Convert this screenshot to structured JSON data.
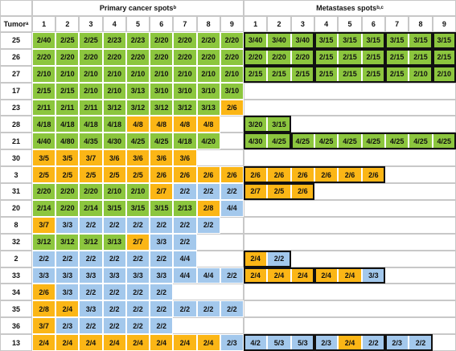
{
  "header": {
    "tumor": "Tumor",
    "tumor_note": "a",
    "primary": "Primary cancer spots",
    "primary_note": "b",
    "metastases": "Metastases spots",
    "metastases_note": "b,c",
    "spots": [
      1,
      2,
      3,
      4,
      5,
      6,
      7,
      8,
      9
    ]
  },
  "colors": {
    "g": "#8cc63e",
    "o": "#fbb616",
    "b": "#a3c8ec"
  },
  "rows": [
    {
      "tumor": 25,
      "primary": [
        [
          "2/40",
          "g"
        ],
        [
          "2/25",
          "g"
        ],
        [
          "2/25",
          "g"
        ],
        [
          "2/23",
          "g"
        ],
        [
          "2/23",
          "g"
        ],
        [
          "2/20",
          "g"
        ],
        [
          "2/20",
          "g"
        ],
        [
          "2/20",
          "g"
        ],
        [
          "2/20",
          "g"
        ]
      ],
      "metastases": [
        [
          "3/40",
          "g"
        ],
        [
          "3/40",
          "g"
        ],
        [
          "3/40",
          "g"
        ],
        [
          "3/15",
          "g"
        ],
        [
          "3/15",
          "g"
        ],
        [
          "3/15",
          "g"
        ],
        [
          "3/15",
          "g"
        ],
        [
          "3/15",
          "g"
        ],
        [
          "3/15",
          "g"
        ]
      ]
    },
    {
      "tumor": 26,
      "primary": [
        [
          "2/20",
          "g"
        ],
        [
          "2/20",
          "g"
        ],
        [
          "2/20",
          "g"
        ],
        [
          "2/20",
          "g"
        ],
        [
          "2/20",
          "g"
        ],
        [
          "2/20",
          "g"
        ],
        [
          "2/20",
          "g"
        ],
        [
          "2/20",
          "g"
        ],
        [
          "2/20",
          "g"
        ]
      ],
      "metastases": [
        [
          "2/20",
          "g"
        ],
        [
          "2/20",
          "g"
        ],
        [
          "2/20",
          "g"
        ],
        [
          "2/15",
          "g"
        ],
        [
          "2/15",
          "g"
        ],
        [
          "2/15",
          "g"
        ],
        [
          "2/15",
          "g"
        ],
        [
          "2/15",
          "g"
        ],
        [
          "2/15",
          "g"
        ]
      ]
    },
    {
      "tumor": 27,
      "primary": [
        [
          "2/10",
          "g"
        ],
        [
          "2/10",
          "g"
        ],
        [
          "2/10",
          "g"
        ],
        [
          "2/10",
          "g"
        ],
        [
          "2/10",
          "g"
        ],
        [
          "2/10",
          "g"
        ],
        [
          "2/10",
          "g"
        ],
        [
          "2/10",
          "g"
        ],
        [
          "2/10",
          "g"
        ]
      ],
      "metastases": [
        [
          "2/15",
          "g"
        ],
        [
          "2/15",
          "g"
        ],
        [
          "2/15",
          "g"
        ],
        [
          "2/15",
          "g"
        ],
        [
          "2/15",
          "g"
        ],
        [
          "2/15",
          "g"
        ],
        [
          "2/15",
          "g"
        ],
        [
          "2/10",
          "g"
        ],
        [
          "2/10",
          "g"
        ]
      ]
    },
    {
      "tumor": 17,
      "primary": [
        [
          "2/15",
          "g"
        ],
        [
          "2/15",
          "g"
        ],
        [
          "2/10",
          "g"
        ],
        [
          "2/10",
          "g"
        ],
        [
          "3/13",
          "g"
        ],
        [
          "3/10",
          "g"
        ],
        [
          "3/10",
          "g"
        ],
        [
          "3/10",
          "g"
        ],
        [
          "3/10",
          "g"
        ]
      ],
      "metastases": []
    },
    {
      "tumor": 23,
      "primary": [
        [
          "2/11",
          "g"
        ],
        [
          "2/11",
          "g"
        ],
        [
          "2/11",
          "g"
        ],
        [
          "3/12",
          "g"
        ],
        [
          "3/12",
          "g"
        ],
        [
          "3/12",
          "g"
        ],
        [
          "3/12",
          "g"
        ],
        [
          "3/13",
          "g"
        ],
        [
          "2/6",
          "o"
        ]
      ],
      "metastases": []
    },
    {
      "tumor": 28,
      "primary": [
        [
          "4/18",
          "g"
        ],
        [
          "4/18",
          "g"
        ],
        [
          "4/18",
          "g"
        ],
        [
          "4/18",
          "g"
        ],
        [
          "4/8",
          "o"
        ],
        [
          "4/8",
          "o"
        ],
        [
          "4/8",
          "o"
        ],
        [
          "4/8",
          "o"
        ]
      ],
      "metastases": [
        [
          "3/20",
          "g"
        ],
        [
          "3/15",
          "g"
        ]
      ]
    },
    {
      "tumor": 21,
      "primary": [
        [
          "4/40",
          "g"
        ],
        [
          "4/80",
          "g"
        ],
        [
          "4/35",
          "g"
        ],
        [
          "4/30",
          "g"
        ],
        [
          "4/25",
          "g"
        ],
        [
          "4/25",
          "g"
        ],
        [
          "4/18",
          "g"
        ],
        [
          "4/20",
          "g"
        ]
      ],
      "metastases": [
        [
          "4/30",
          "g"
        ],
        [
          "4/25",
          "g"
        ],
        [
          "4/25",
          "g"
        ],
        [
          "4/25",
          "g"
        ],
        [
          "4/25",
          "g"
        ],
        [
          "4/25",
          "g"
        ],
        [
          "4/25",
          "g"
        ],
        [
          "4/25",
          "g"
        ],
        [
          "4/25",
          "g"
        ]
      ]
    },
    {
      "tumor": 30,
      "primary": [
        [
          "3/5",
          "o"
        ],
        [
          "3/5",
          "o"
        ],
        [
          "3/7",
          "o"
        ],
        [
          "3/6",
          "o"
        ],
        [
          "3/6",
          "o"
        ],
        [
          "3/6",
          "o"
        ],
        [
          "3/6",
          "o"
        ]
      ],
      "metastases": []
    },
    {
      "tumor": 3,
      "primary": [
        [
          "2/5",
          "o"
        ],
        [
          "2/5",
          "o"
        ],
        [
          "2/5",
          "o"
        ],
        [
          "2/5",
          "o"
        ],
        [
          "2/5",
          "o"
        ],
        [
          "2/6",
          "o"
        ],
        [
          "2/6",
          "o"
        ],
        [
          "2/6",
          "o"
        ],
        [
          "2/6",
          "o"
        ]
      ],
      "metastases": [
        [
          "2/6",
          "o"
        ],
        [
          "2/6",
          "o"
        ],
        [
          "2/6",
          "o"
        ],
        [
          "2/6",
          "o"
        ],
        [
          "2/6",
          "o"
        ],
        [
          "2/6",
          "o"
        ]
      ]
    },
    {
      "tumor": 31,
      "primary": [
        [
          "2/20",
          "g"
        ],
        [
          "2/20",
          "g"
        ],
        [
          "2/20",
          "g"
        ],
        [
          "2/10",
          "g"
        ],
        [
          "2/10",
          "g"
        ],
        [
          "2/7",
          "o"
        ],
        [
          "2/2",
          "b"
        ],
        [
          "2/2",
          "b"
        ],
        [
          "2/2",
          "b"
        ]
      ],
      "metastases": [
        [
          "2/7",
          "o"
        ],
        [
          "2/5",
          "o"
        ],
        [
          "2/6",
          "o"
        ]
      ]
    },
    {
      "tumor": 20,
      "primary": [
        [
          "2/14",
          "g"
        ],
        [
          "2/20",
          "g"
        ],
        [
          "2/14",
          "g"
        ],
        [
          "3/15",
          "g"
        ],
        [
          "3/15",
          "g"
        ],
        [
          "3/15",
          "g"
        ],
        [
          "2/13",
          "g"
        ],
        [
          "2/8",
          "o"
        ],
        [
          "4/4",
          "b"
        ]
      ],
      "metastases": []
    },
    {
      "tumor": 8,
      "primary": [
        [
          "3/7",
          "o"
        ],
        [
          "3/3",
          "b"
        ],
        [
          "2/2",
          "b"
        ],
        [
          "2/2",
          "b"
        ],
        [
          "2/2",
          "b"
        ],
        [
          "2/2",
          "b"
        ],
        [
          "2/2",
          "b"
        ],
        [
          "2/2",
          "b"
        ]
      ],
      "metastases": []
    },
    {
      "tumor": 32,
      "primary": [
        [
          "3/12",
          "g"
        ],
        [
          "3/12",
          "g"
        ],
        [
          "3/12",
          "g"
        ],
        [
          "3/13",
          "g"
        ],
        [
          "2/7",
          "o"
        ],
        [
          "3/3",
          "b"
        ],
        [
          "2/2",
          "b"
        ]
      ],
      "metastases": []
    },
    {
      "tumor": 2,
      "primary": [
        [
          "2/2",
          "b"
        ],
        [
          "2/2",
          "b"
        ],
        [
          "2/2",
          "b"
        ],
        [
          "2/2",
          "b"
        ],
        [
          "2/2",
          "b"
        ],
        [
          "2/2",
          "b"
        ],
        [
          "4/4",
          "b"
        ]
      ],
      "metastases": [
        [
          "2/4",
          "o"
        ],
        [
          "2/2",
          "b"
        ]
      ]
    },
    {
      "tumor": 33,
      "primary": [
        [
          "3/3",
          "b"
        ],
        [
          "3/3",
          "b"
        ],
        [
          "3/3",
          "b"
        ],
        [
          "3/3",
          "b"
        ],
        [
          "3/3",
          "b"
        ],
        [
          "3/3",
          "b"
        ],
        [
          "4/4",
          "b"
        ],
        [
          "4/4",
          "b"
        ],
        [
          "2/2",
          "b"
        ]
      ],
      "metastases": [
        [
          "2/4",
          "o"
        ],
        [
          "2/4",
          "o"
        ],
        [
          "2/4",
          "o"
        ],
        [
          "2/4",
          "o"
        ],
        [
          "2/4",
          "o"
        ],
        [
          "3/3",
          "b"
        ]
      ]
    },
    {
      "tumor": 34,
      "primary": [
        [
          "2/6",
          "o"
        ],
        [
          "3/3",
          "b"
        ],
        [
          "2/2",
          "b"
        ],
        [
          "2/2",
          "b"
        ],
        [
          "2/2",
          "b"
        ],
        [
          "2/2",
          "b"
        ]
      ],
      "metastases": []
    },
    {
      "tumor": 35,
      "primary": [
        [
          "2/8",
          "o"
        ],
        [
          "2/4",
          "o"
        ],
        [
          "3/3",
          "b"
        ],
        [
          "2/2",
          "b"
        ],
        [
          "2/2",
          "b"
        ],
        [
          "2/2",
          "b"
        ],
        [
          "2/2",
          "b"
        ],
        [
          "2/2",
          "b"
        ],
        [
          "2/2",
          "b"
        ]
      ],
      "metastases": []
    },
    {
      "tumor": 36,
      "primary": [
        [
          "3/7",
          "o"
        ],
        [
          "2/3",
          "b"
        ],
        [
          "2/2",
          "b"
        ],
        [
          "2/2",
          "b"
        ],
        [
          "2/2",
          "b"
        ],
        [
          "2/2",
          "b"
        ]
      ],
      "metastases": []
    },
    {
      "tumor": 13,
      "primary": [
        [
          "2/4",
          "o"
        ],
        [
          "2/4",
          "o"
        ],
        [
          "2/4",
          "o"
        ],
        [
          "2/4",
          "o"
        ],
        [
          "2/4",
          "o"
        ],
        [
          "2/4",
          "o"
        ],
        [
          "2/4",
          "o"
        ],
        [
          "2/4",
          "o"
        ],
        [
          "2/3",
          "b"
        ]
      ],
      "metastases": [
        [
          "4/2",
          "b"
        ],
        [
          "5/3",
          "b"
        ],
        [
          "5/3",
          "b"
        ],
        [
          "2/3",
          "b"
        ],
        [
          "2/4",
          "o"
        ],
        [
          "2/2",
          "b"
        ],
        [
          "2/3",
          "b"
        ],
        [
          "2/2",
          "b"
        ]
      ]
    }
  ]
}
